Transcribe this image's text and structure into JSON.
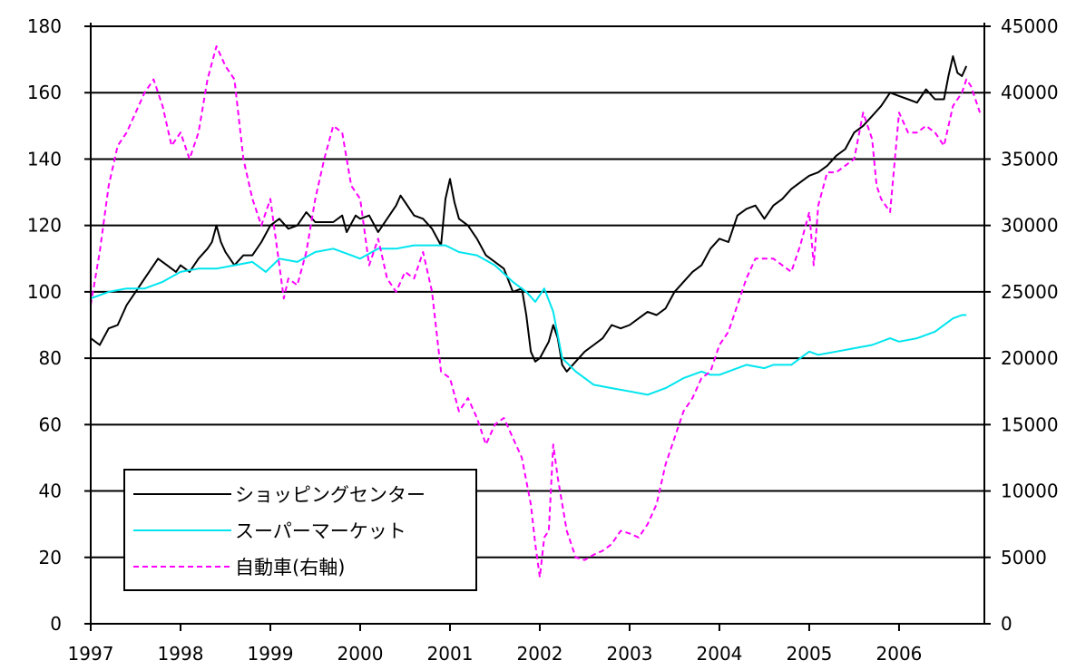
{
  "chart_data": {
    "type": "line",
    "title": "",
    "xlabel": "",
    "ylabel": "",
    "x_ticks": [
      "1997",
      "1998",
      "1999",
      "2000",
      "2001",
      "2002",
      "2003",
      "2004",
      "2005",
      "2006"
    ],
    "x_range": [
      1997.0,
      2006.95
    ],
    "y_left": {
      "range": [
        0,
        180
      ],
      "ticks": [
        "0",
        "20",
        "40",
        "60",
        "80",
        "100",
        "120",
        "140",
        "160",
        "180"
      ]
    },
    "y_right": {
      "range": [
        0,
        45000
      ],
      "ticks": [
        "0",
        "5000",
        "10000",
        "15000",
        "20000",
        "25000",
        "30000",
        "35000",
        "40000",
        "45000"
      ]
    },
    "grid": "horizontal",
    "legend_position": "bottom-left",
    "series": [
      {
        "name": "ショッピングセンター",
        "axis": "left",
        "color": "#000000",
        "style": "solid",
        "points": [
          [
            1997.0,
            86
          ],
          [
            1997.1,
            84
          ],
          [
            1997.2,
            89
          ],
          [
            1997.3,
            90
          ],
          [
            1997.4,
            96
          ],
          [
            1997.5,
            100
          ],
          [
            1997.6,
            104
          ],
          [
            1997.7,
            108
          ],
          [
            1997.75,
            110
          ],
          [
            1997.85,
            108
          ],
          [
            1997.95,
            106
          ],
          [
            1998.0,
            108
          ],
          [
            1998.1,
            106
          ],
          [
            1998.2,
            110
          ],
          [
            1998.3,
            113
          ],
          [
            1998.35,
            115
          ],
          [
            1998.4,
            120
          ],
          [
            1998.45,
            115
          ],
          [
            1998.5,
            112
          ],
          [
            1998.6,
            108
          ],
          [
            1998.7,
            111
          ],
          [
            1998.8,
            111
          ],
          [
            1998.9,
            115
          ],
          [
            1999.0,
            120
          ],
          [
            1999.1,
            122
          ],
          [
            1999.2,
            119
          ],
          [
            1999.3,
            120
          ],
          [
            1999.4,
            124
          ],
          [
            1999.5,
            121
          ],
          [
            1999.6,
            121
          ],
          [
            1999.7,
            121
          ],
          [
            1999.8,
            123
          ],
          [
            1999.85,
            118
          ],
          [
            1999.95,
            123
          ],
          [
            2000.0,
            122
          ],
          [
            2000.1,
            123
          ],
          [
            2000.2,
            118
          ],
          [
            2000.3,
            122
          ],
          [
            2000.4,
            126
          ],
          [
            2000.45,
            129
          ],
          [
            2000.5,
            127
          ],
          [
            2000.6,
            123
          ],
          [
            2000.7,
            122
          ],
          [
            2000.8,
            119
          ],
          [
            2000.9,
            114
          ],
          [
            2000.95,
            128
          ],
          [
            2001.0,
            134
          ],
          [
            2001.05,
            127
          ],
          [
            2001.1,
            122
          ],
          [
            2001.2,
            120
          ],
          [
            2001.3,
            116
          ],
          [
            2001.4,
            111
          ],
          [
            2001.5,
            109
          ],
          [
            2001.6,
            107
          ],
          [
            2001.7,
            100
          ],
          [
            2001.8,
            101
          ],
          [
            2001.85,
            93
          ],
          [
            2001.9,
            82
          ],
          [
            2001.95,
            79
          ],
          [
            2002.0,
            80
          ],
          [
            2002.1,
            85
          ],
          [
            2002.15,
            90
          ],
          [
            2002.2,
            86
          ],
          [
            2002.25,
            78
          ],
          [
            2002.3,
            76
          ],
          [
            2002.4,
            79
          ],
          [
            2002.5,
            82
          ],
          [
            2002.6,
            84
          ],
          [
            2002.7,
            86
          ],
          [
            2002.8,
            90
          ],
          [
            2002.9,
            89
          ],
          [
            2003.0,
            90
          ],
          [
            2003.1,
            92
          ],
          [
            2003.2,
            94
          ],
          [
            2003.3,
            93
          ],
          [
            2003.4,
            95
          ],
          [
            2003.5,
            100
          ],
          [
            2003.6,
            103
          ],
          [
            2003.7,
            106
          ],
          [
            2003.8,
            108
          ],
          [
            2003.9,
            113
          ],
          [
            2004.0,
            116
          ],
          [
            2004.1,
            115
          ],
          [
            2004.2,
            123
          ],
          [
            2004.3,
            125
          ],
          [
            2004.4,
            126
          ],
          [
            2004.5,
            122
          ],
          [
            2004.6,
            126
          ],
          [
            2004.7,
            128
          ],
          [
            2004.8,
            131
          ],
          [
            2004.9,
            133
          ],
          [
            2005.0,
            135
          ],
          [
            2005.1,
            136
          ],
          [
            2005.2,
            138
          ],
          [
            2005.3,
            141
          ],
          [
            2005.4,
            143
          ],
          [
            2005.5,
            148
          ],
          [
            2005.6,
            150
          ],
          [
            2005.7,
            153
          ],
          [
            2005.8,
            156
          ],
          [
            2005.9,
            160
          ],
          [
            2006.0,
            159
          ],
          [
            2006.1,
            158
          ],
          [
            2006.2,
            157
          ],
          [
            2006.3,
            161
          ],
          [
            2006.4,
            158
          ],
          [
            2006.5,
            158
          ],
          [
            2006.55,
            165
          ],
          [
            2006.6,
            171
          ],
          [
            2006.65,
            166
          ],
          [
            2006.7,
            165
          ],
          [
            2006.75,
            168
          ]
        ]
      },
      {
        "name": "スーパーマーケット",
        "axis": "left",
        "color": "#00e5ee",
        "style": "solid",
        "points": [
          [
            1997.0,
            98
          ],
          [
            1997.2,
            100
          ],
          [
            1997.4,
            101
          ],
          [
            1997.6,
            101
          ],
          [
            1997.8,
            103
          ],
          [
            1998.0,
            106
          ],
          [
            1998.2,
            107
          ],
          [
            1998.4,
            107
          ],
          [
            1998.6,
            108
          ],
          [
            1998.8,
            109
          ],
          [
            1998.95,
            106
          ],
          [
            1999.1,
            110
          ],
          [
            1999.3,
            109
          ],
          [
            1999.5,
            112
          ],
          [
            1999.7,
            113
          ],
          [
            1999.9,
            111
          ],
          [
            2000.0,
            110
          ],
          [
            2000.2,
            113
          ],
          [
            2000.4,
            113
          ],
          [
            2000.6,
            114
          ],
          [
            2000.8,
            114
          ],
          [
            2000.95,
            114
          ],
          [
            2001.1,
            112
          ],
          [
            2001.3,
            111
          ],
          [
            2001.5,
            108
          ],
          [
            2001.7,
            103
          ],
          [
            2001.85,
            100
          ],
          [
            2001.95,
            97
          ],
          [
            2002.05,
            101
          ],
          [
            2002.15,
            94
          ],
          [
            2002.25,
            80
          ],
          [
            2002.4,
            76
          ],
          [
            2002.5,
            74
          ],
          [
            2002.6,
            72
          ],
          [
            2002.8,
            71
          ],
          [
            2003.0,
            70
          ],
          [
            2003.2,
            69
          ],
          [
            2003.4,
            71
          ],
          [
            2003.6,
            74
          ],
          [
            2003.8,
            76
          ],
          [
            2003.9,
            75
          ],
          [
            2004.0,
            75
          ],
          [
            2004.2,
            77
          ],
          [
            2004.3,
            78
          ],
          [
            2004.5,
            77
          ],
          [
            2004.6,
            78
          ],
          [
            2004.8,
            78
          ],
          [
            2004.9,
            80
          ],
          [
            2005.0,
            82
          ],
          [
            2005.1,
            81
          ],
          [
            2005.3,
            82
          ],
          [
            2005.5,
            83
          ],
          [
            2005.7,
            84
          ],
          [
            2005.9,
            86
          ],
          [
            2006.0,
            85
          ],
          [
            2006.2,
            86
          ],
          [
            2006.4,
            88
          ],
          [
            2006.6,
            92
          ],
          [
            2006.7,
            93
          ],
          [
            2006.75,
            93
          ]
        ]
      },
      {
        "name": "自動車(右軸)",
        "axis": "right",
        "color": "#ff00ff",
        "style": "dashed",
        "points": [
          [
            1997.0,
            24000
          ],
          [
            1997.1,
            28000
          ],
          [
            1997.2,
            33000
          ],
          [
            1997.3,
            36000
          ],
          [
            1997.4,
            37000
          ],
          [
            1997.5,
            38500
          ],
          [
            1997.6,
            40000
          ],
          [
            1997.7,
            41000
          ],
          [
            1997.8,
            39000
          ],
          [
            1997.9,
            36000
          ],
          [
            1998.0,
            37000
          ],
          [
            1998.1,
            35000
          ],
          [
            1998.2,
            37000
          ],
          [
            1998.3,
            41000
          ],
          [
            1998.4,
            43500
          ],
          [
            1998.5,
            42000
          ],
          [
            1998.6,
            41000
          ],
          [
            1998.7,
            35000
          ],
          [
            1998.8,
            32000
          ],
          [
            1998.9,
            30000
          ],
          [
            1999.0,
            32000
          ],
          [
            1999.1,
            27000
          ],
          [
            1999.15,
            24500
          ],
          [
            1999.2,
            26000
          ],
          [
            1999.3,
            25500
          ],
          [
            1999.4,
            28000
          ],
          [
            1999.5,
            32000
          ],
          [
            1999.6,
            35000
          ],
          [
            1999.7,
            37500
          ],
          [
            1999.8,
            37000
          ],
          [
            1999.9,
            33000
          ],
          [
            2000.0,
            32000
          ],
          [
            2000.1,
            27000
          ],
          [
            2000.2,
            29000
          ],
          [
            2000.3,
            26000
          ],
          [
            2000.4,
            25000
          ],
          [
            2000.5,
            26500
          ],
          [
            2000.6,
            26000
          ],
          [
            2000.7,
            28000
          ],
          [
            2000.8,
            25000
          ],
          [
            2000.9,
            19000
          ],
          [
            2001.0,
            18500
          ],
          [
            2001.1,
            16000
          ],
          [
            2001.2,
            17000
          ],
          [
            2001.3,
            15500
          ],
          [
            2001.4,
            13500
          ],
          [
            2001.5,
            15000
          ],
          [
            2001.6,
            15500
          ],
          [
            2001.7,
            14000
          ],
          [
            2001.8,
            12500
          ],
          [
            2001.9,
            9000
          ],
          [
            2001.95,
            6000
          ],
          [
            2002.0,
            3500
          ],
          [
            2002.05,
            6500
          ],
          [
            2002.1,
            7000
          ],
          [
            2002.15,
            13500
          ],
          [
            2002.2,
            11000
          ],
          [
            2002.3,
            7000
          ],
          [
            2002.4,
            5000
          ],
          [
            2002.5,
            4800
          ],
          [
            2002.6,
            5200
          ],
          [
            2002.7,
            5500
          ],
          [
            2002.8,
            6000
          ],
          [
            2002.9,
            7000
          ],
          [
            2003.0,
            6800
          ],
          [
            2003.1,
            6500
          ],
          [
            2003.2,
            7500
          ],
          [
            2003.3,
            9000
          ],
          [
            2003.4,
            12000
          ],
          [
            2003.5,
            14000
          ],
          [
            2003.6,
            16000
          ],
          [
            2003.7,
            17000
          ],
          [
            2003.8,
            18500
          ],
          [
            2003.9,
            19000
          ],
          [
            2004.0,
            21000
          ],
          [
            2004.1,
            22000
          ],
          [
            2004.2,
            24000
          ],
          [
            2004.3,
            26000
          ],
          [
            2004.4,
            27500
          ],
          [
            2004.5,
            27500
          ],
          [
            2004.6,
            27500
          ],
          [
            2004.7,
            27000
          ],
          [
            2004.8,
            26500
          ],
          [
            2004.9,
            28500
          ],
          [
            2005.0,
            31000
          ],
          [
            2005.05,
            27000
          ],
          [
            2005.1,
            31500
          ],
          [
            2005.2,
            34000
          ],
          [
            2005.3,
            34000
          ],
          [
            2005.4,
            34500
          ],
          [
            2005.5,
            35000
          ],
          [
            2005.6,
            38500
          ],
          [
            2005.7,
            36500
          ],
          [
            2005.75,
            33000
          ],
          [
            2005.8,
            32000
          ],
          [
            2005.9,
            31000
          ],
          [
            2006.0,
            38500
          ],
          [
            2006.1,
            37000
          ],
          [
            2006.2,
            37000
          ],
          [
            2006.3,
            37500
          ],
          [
            2006.4,
            37000
          ],
          [
            2006.5,
            36000
          ],
          [
            2006.6,
            39000
          ],
          [
            2006.7,
            40000
          ],
          [
            2006.75,
            41000
          ],
          [
            2006.8,
            40500
          ],
          [
            2006.9,
            38500
          ]
        ]
      }
    ]
  }
}
